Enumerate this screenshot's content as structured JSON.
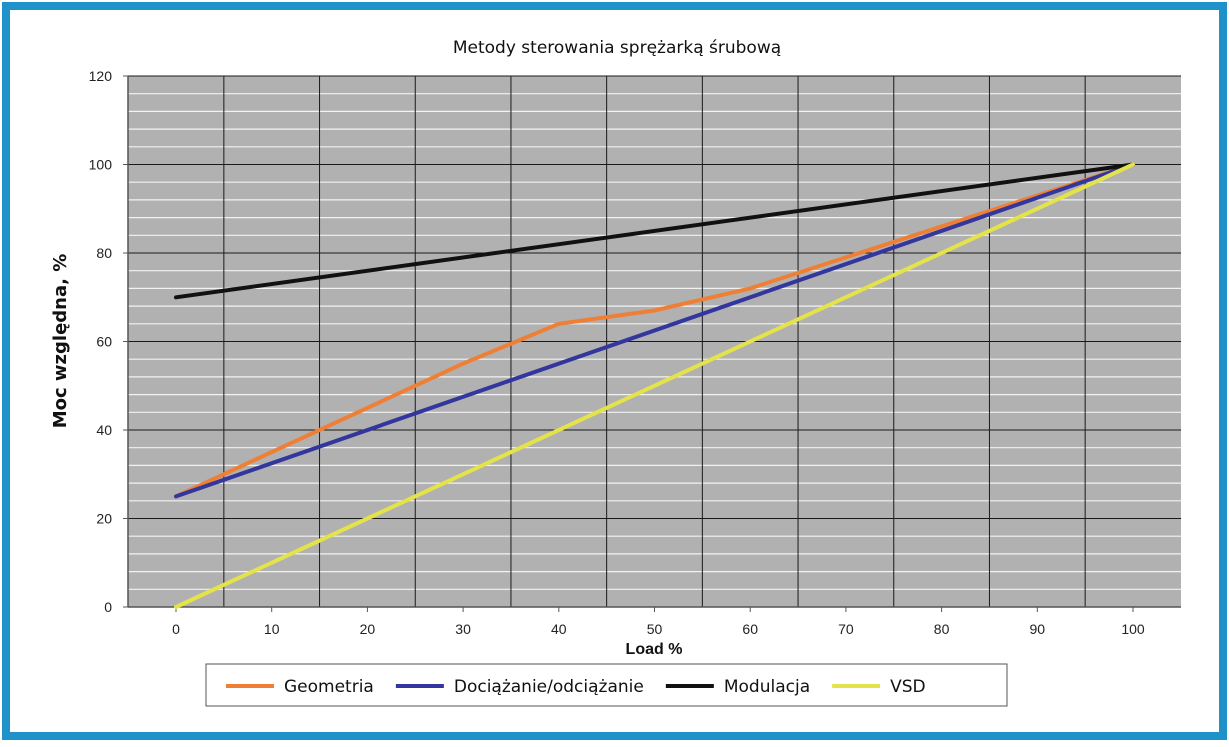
{
  "colors": {
    "frame": "#1f93c9",
    "plot_bg": "#b1b1b1",
    "grid_major": "#1a1a1a",
    "grid_minor": "#f2f2f2"
  },
  "chart_data": {
    "type": "line",
    "title": "Metody sterowania sprężarką śrubową",
    "xlabel": "Load %",
    "ylabel": "Moc względna, %",
    "xlim": [
      0,
      100
    ],
    "ylim": [
      0,
      120
    ],
    "xticks": [
      0,
      10,
      20,
      30,
      40,
      50,
      60,
      70,
      80,
      90,
      100
    ],
    "yticks": [
      0,
      20,
      40,
      60,
      80,
      100,
      120
    ],
    "grid": true,
    "legend_position": "bottom",
    "series": [
      {
        "name": "Geometria",
        "color": "#ef7f34",
        "points": [
          [
            0,
            25
          ],
          [
            10,
            35
          ],
          [
            20,
            45
          ],
          [
            30,
            55
          ],
          [
            40,
            64
          ],
          [
            50,
            67
          ],
          [
            60,
            72
          ],
          [
            70,
            79
          ],
          [
            80,
            86
          ],
          [
            90,
            93
          ],
          [
            100,
            100
          ]
        ]
      },
      {
        "name": "Dociążanie/odciążanie",
        "color": "#33369c",
        "points": [
          [
            0,
            25
          ],
          [
            100,
            100
          ]
        ]
      },
      {
        "name": "Modulacja",
        "color": "#111111",
        "points": [
          [
            0,
            70
          ],
          [
            100,
            100
          ]
        ]
      },
      {
        "name": "VSD",
        "color": "#e4e34a",
        "points": [
          [
            0,
            0
          ],
          [
            100,
            100
          ]
        ]
      }
    ]
  }
}
